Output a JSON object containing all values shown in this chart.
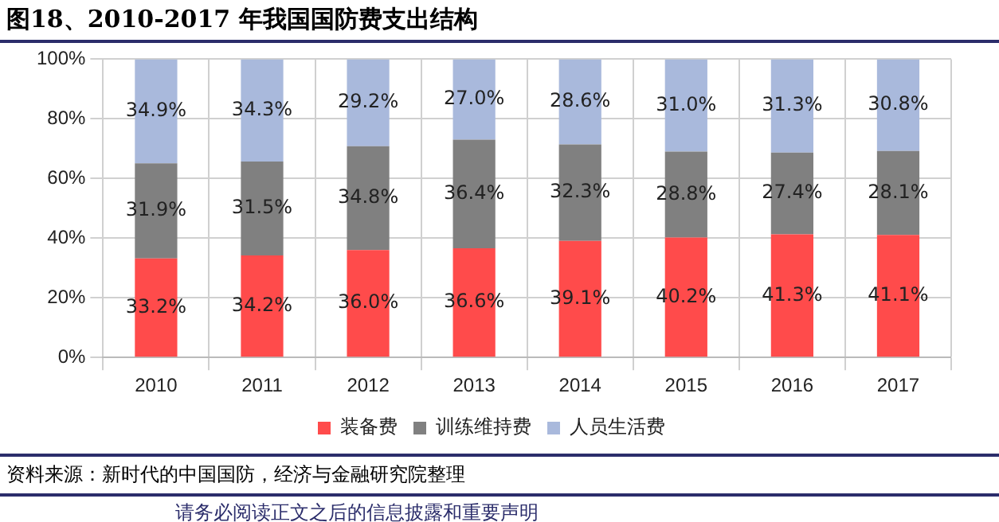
{
  "chart_data": {
    "type": "bar",
    "stacked": true,
    "title": "图18、2010-2017 年我国国防费支出结构",
    "categories": [
      "2010",
      "2011",
      "2012",
      "2013",
      "2014",
      "2015",
      "2016",
      "2017"
    ],
    "series": [
      {
        "name": "装备费",
        "color": "#ff4b4b",
        "values": [
          33.2,
          34.2,
          36.0,
          36.6,
          39.1,
          40.2,
          41.3,
          41.1
        ],
        "value_labels": [
          "33.2%",
          "34.2%",
          "36.0%",
          "36.6%",
          "39.1%",
          "40.2%",
          "41.3%",
          "41.1%"
        ]
      },
      {
        "name": "训练维持费",
        "color": "#808080",
        "values": [
          31.9,
          31.5,
          34.8,
          36.4,
          32.3,
          28.8,
          27.4,
          28.1
        ],
        "value_labels": [
          "31.9%",
          "31.5%",
          "34.8%",
          "36.4%",
          "32.3%",
          "28.8%",
          "27.4%",
          "28.1%"
        ]
      },
      {
        "name": "人员生活费",
        "color": "#a9b9dc",
        "values": [
          34.9,
          34.3,
          29.2,
          27.0,
          28.6,
          31.0,
          31.3,
          30.8
        ],
        "value_labels": [
          "34.9%",
          "34.3%",
          "29.2%",
          "27.0%",
          "28.6%",
          "31.0%",
          "31.3%",
          "30.8%"
        ]
      }
    ],
    "ylim": [
      0,
      100
    ],
    "yticks": [
      {
        "value": 0,
        "label": "0%"
      },
      {
        "value": 20,
        "label": "20%"
      },
      {
        "value": 40,
        "label": "40%"
      },
      {
        "value": 60,
        "label": "60%"
      },
      {
        "value": 80,
        "label": "80%"
      },
      {
        "value": 100,
        "label": "100%"
      }
    ],
    "grid": true,
    "legend": "bottom",
    "annotations": [
      "资料来源：新时代的中国国防，经济与金融研究院整理",
      "请务必阅读正文之后的信息披露和重要声明"
    ]
  }
}
